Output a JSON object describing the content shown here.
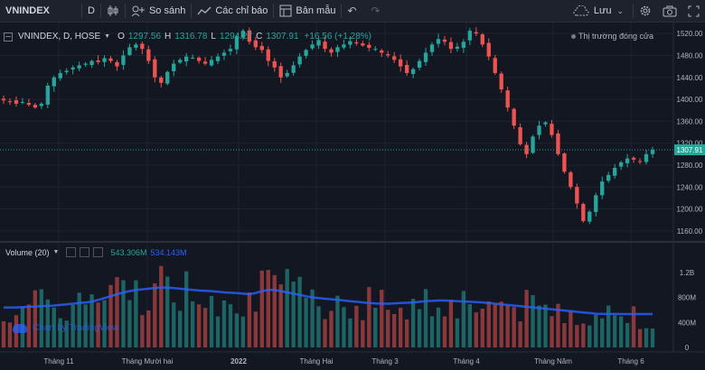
{
  "toolbar": {
    "symbol": "VNINDEX",
    "interval": "D",
    "compare": "So sánh",
    "indicators": "Các chỉ báo",
    "templates": "Bản mẫu",
    "save": "Lưu"
  },
  "legend": {
    "title": "VNINDEX, D, HOSE",
    "o_label": "O",
    "o_value": "1297.56",
    "h_label": "H",
    "h_value": "1316.78",
    "l_label": "L",
    "l_value": "1294.27",
    "c_label": "C",
    "c_value": "1307.91",
    "change": "+16.56 (+1.28%)"
  },
  "status": "Thị trường đóng cửa",
  "volume_legend": {
    "label": "Volume (20)",
    "value1": "543.306M",
    "value2": "534.143M"
  },
  "watermark": "Chart by TradingView",
  "colors": {
    "up": "#26a69a",
    "down": "#ef5350",
    "ma": "#2962ff",
    "last_price": "#26a69a"
  },
  "chart_data": {
    "type": "candlestick",
    "price_axis": {
      "ticks": [
        "1520.00",
        "1480.00",
        "1440.00",
        "1400.00",
        "1360.00",
        "1320.00",
        "1280.00",
        "1240.00",
        "1200.00",
        "1160.00"
      ],
      "min": 1140,
      "max": 1540
    },
    "last_price": 1307.91,
    "last_price_label": "1307.91",
    "volume_axis": {
      "ticks": [
        "1.2B",
        "800M",
        "400M",
        "0"
      ],
      "max": 1400
    },
    "time_axis": {
      "labels": [
        "Tháng 11",
        "Tháng Mười hai",
        "2022",
        "Tháng Hai",
        "Tháng 3",
        "Tháng 4",
        "Tháng Năm",
        "Tháng 6"
      ]
    },
    "close_path": [
      1398,
      1396,
      1392,
      1395,
      1390,
      1385,
      1392,
      1425,
      1440,
      1448,
      1452,
      1458,
      1462,
      1465,
      1470,
      1468,
      1475,
      1470,
      1460,
      1480,
      1495,
      1500,
      1492,
      1470,
      1440,
      1430,
      1450,
      1465,
      1472,
      1478,
      1476,
      1470,
      1465,
      1472,
      1478,
      1485,
      1492,
      1515,
      1525,
      1505,
      1495,
      1490,
      1470,
      1458,
      1440,
      1448,
      1462,
      1478,
      1490,
      1500,
      1508,
      1492,
      1485,
      1495,
      1500,
      1506,
      1502,
      1498,
      1494,
      1492,
      1485,
      1480,
      1472,
      1460,
      1448,
      1455,
      1470,
      1485,
      1500,
      1510,
      1505,
      1492,
      1496,
      1505,
      1525,
      1520,
      1500,
      1478,
      1448,
      1418,
      1385,
      1352,
      1318,
      1300,
      1332,
      1352,
      1358,
      1335,
      1300,
      1268,
      1240,
      1210,
      1178,
      1195,
      1225,
      1250,
      1262,
      1275,
      1285,
      1292,
      1290,
      1286,
      1300,
      1308
    ],
    "volume_ma": [
      640,
      640,
      640,
      645,
      650,
      655,
      660,
      665,
      670,
      680,
      690,
      700,
      710,
      720,
      730,
      760,
      790,
      820,
      850,
      880,
      900,
      920,
      930,
      940,
      950,
      960,
      955,
      950,
      940,
      930,
      920,
      910,
      905,
      900,
      890,
      880,
      875,
      870,
      860,
      850,
      870,
      900,
      920,
      920,
      900,
      880,
      860,
      840,
      820,
      800,
      790,
      780,
      770,
      760,
      750,
      740,
      730,
      720,
      710,
      705,
      700,
      700,
      705,
      710,
      715,
      720,
      730,
      740,
      745,
      750,
      750,
      745,
      740,
      735,
      730,
      725,
      720,
      710,
      700,
      690,
      680,
      670,
      660,
      650,
      640,
      630,
      620,
      610,
      600,
      590,
      580,
      570,
      560,
      550,
      540,
      535,
      535,
      535,
      534,
      534,
      534,
      534,
      534,
      534
    ]
  }
}
